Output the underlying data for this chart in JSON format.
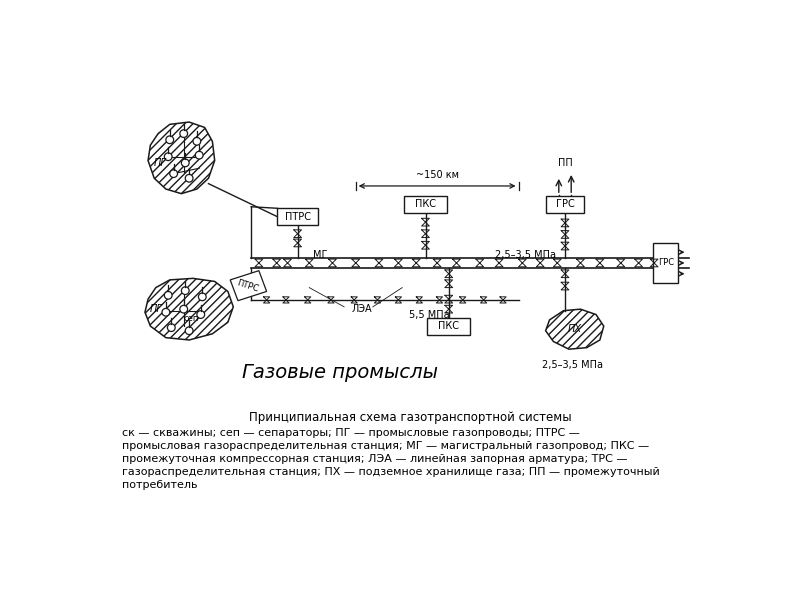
{
  "title": "Принципиальная схема газотранспортной системы",
  "legend_text": "ск — скважины; сеп — сепараторы; ПГ — промысловые газопроводы; ПТРС —\nпромысловая газораспределительная станция; МГ — магистральный газопровод; ПКС —\nпромежуточная компрессорная станция; ЛЭА — линейная запорная арматура; ТРС —\nгазораспределительная станция; ПХ — подземное хранилище газа; ПП — промежуточный\nпотребитель",
  "bg_color": "#ffffff",
  "line_color": "#1a1a1a",
  "diagram_label": "Газовые промыслы",
  "pressure_top": "2,5–3,5 МПа",
  "pressure_mid": "5,5 МПа",
  "pressure_bot": "2,5–3,5 МПа",
  "distance_label": "~150 км"
}
